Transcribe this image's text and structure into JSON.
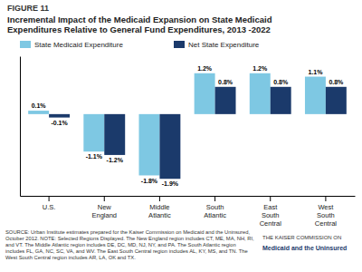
{
  "chart_data": {
    "type": "bar",
    "title": "Incremental Impact of the Medicaid Expansion on State Medicaid\nExpenditures Relative to General Fund Expenditures, 2013 -2022",
    "categories": [
      "U.S.",
      "New\nEngland",
      "Middle\nAtlantic",
      "South\nAtlantic",
      "East\nSouth\nCentral",
      "West\nSouth\nCentral"
    ],
    "series": [
      {
        "name": "State Medicaid Expenditure",
        "color": "#7EC8E3",
        "values": [
          0.1,
          -1.1,
          -1.8,
          1.2,
          1.2,
          1.1
        ],
        "value_labels": [
          "0.1%",
          "-1.1%",
          "-1.8%",
          "1.2%",
          "1.2%",
          "1.1%"
        ]
      },
      {
        "name": "Net State Expenditure",
        "color": "#1B3A6B",
        "values": [
          -0.1,
          -1.2,
          -1.9,
          0.8,
          0.8,
          0.8
        ],
        "value_labels": [
          "-0.1%",
          "-1.2%",
          "-1.9%",
          "0.8%",
          "0.8%",
          "0.8%"
        ]
      }
    ],
    "ylim": [
      -2.4,
      1.7
    ],
    "data_labels": true,
    "tick_labels": "x",
    "legend": "top",
    "annotations": [
      "FIGURE 11",
      "SOURCE: Urban Institute estimates prepared for the Kaiser Commission on Medicaid and the Uninsured, October 2012. NOTE: Selected Regions Displayed. The New England region includes CT, ME, MA, NH, RI, and VT. The Middle Atlantic region includes DE, DC, MD, NJ, NY, and PA. The South Atlantic region includes FL, GA, NC, SC, VA, and WV. The East South Central region includes AL, KY, MS, and TN. The West South Central region includes AR, LA, OK and TX.",
      "THE KAISER COMMISSION ON",
      "Medicaid and the Uninsured"
    ]
  }
}
